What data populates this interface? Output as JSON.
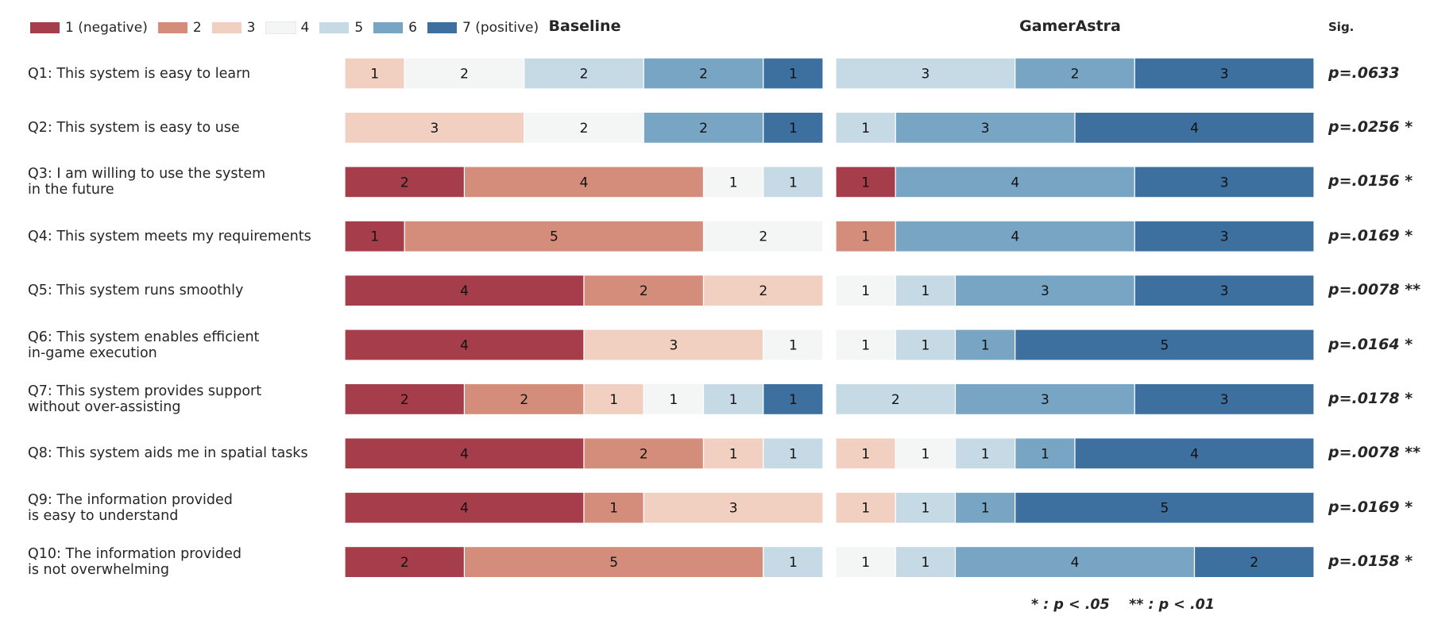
{
  "chart_data": {
    "type": "bar",
    "subtype": "stacked-horizontal-likert",
    "panels": [
      "Baseline",
      "GamerAstra"
    ],
    "sig_header": "Sig.",
    "legend": {
      "labels": [
        "1 (negative)",
        "2",
        "3",
        "4",
        "5",
        "6",
        "7 (positive)"
      ],
      "colors": [
        "#a63d4a",
        "#d48c7b",
        "#f1d0c2",
        "#f4f5f5",
        "#c6dae5",
        "#77a5c3",
        "#3d6f9f"
      ]
    },
    "categories": [
      [
        "Q1: This system is easy to learn"
      ],
      [
        "Q2: This system is easy to use"
      ],
      [
        "Q3: I am willing to use the system",
        "in the future"
      ],
      [
        "Q4: This system meets my requirements"
      ],
      [
        "Q5: This system runs smoothly"
      ],
      [
        "Q6: This system enables efficient",
        "in-game execution"
      ],
      [
        "Q7: This system provides support",
        "without over-assisting"
      ],
      [
        "Q8: This system aids me in spatial tasks"
      ],
      [
        "Q9: The information provided",
        "is easy to understand"
      ],
      [
        "Q10: The information provided",
        "is not overwhelming"
      ]
    ],
    "series": [
      {
        "name": "Baseline",
        "counts": [
          [
            0,
            0,
            1,
            2,
            2,
            2,
            1
          ],
          [
            0,
            0,
            3,
            2,
            0,
            2,
            1
          ],
          [
            2,
            4,
            0,
            1,
            1,
            0,
            0
          ],
          [
            1,
            5,
            0,
            2,
            0,
            0,
            0
          ],
          [
            4,
            2,
            2,
            0,
            0,
            0,
            0
          ],
          [
            4,
            0,
            3,
            1,
            0,
            0,
            0
          ],
          [
            2,
            2,
            1,
            1,
            1,
            0,
            1
          ],
          [
            4,
            2,
            1,
            0,
            1,
            0,
            0
          ],
          [
            4,
            1,
            3,
            0,
            0,
            0,
            0
          ],
          [
            2,
            5,
            0,
            0,
            1,
            0,
            0
          ]
        ]
      },
      {
        "name": "GamerAstra",
        "counts": [
          [
            0,
            0,
            0,
            0,
            3,
            2,
            3
          ],
          [
            0,
            0,
            0,
            0,
            1,
            3,
            4
          ],
          [
            1,
            0,
            0,
            0,
            0,
            4,
            3
          ],
          [
            0,
            1,
            0,
            0,
            0,
            4,
            3
          ],
          [
            0,
            0,
            0,
            1,
            1,
            3,
            3
          ],
          [
            0,
            0,
            0,
            1,
            1,
            1,
            5
          ],
          [
            0,
            0,
            0,
            0,
            2,
            3,
            3
          ],
          [
            0,
            0,
            1,
            1,
            1,
            1,
            4
          ],
          [
            0,
            0,
            1,
            0,
            1,
            1,
            5
          ],
          [
            0,
            0,
            0,
            1,
            1,
            4,
            2
          ]
        ]
      }
    ],
    "total_per_row": 8,
    "p_values": [
      "p=.0633",
      "p=.0256 *",
      "p=.0156 *",
      "p=.0169 *",
      "p=.0078 **",
      "p=.0164 *",
      "p=.0178 *",
      "p=.0078 **",
      "p=.0169 *",
      "p=.0158 *"
    ],
    "footnote": "* : p < .05    ** : p < .01",
    "grid": false,
    "legend_position": "top-left"
  }
}
